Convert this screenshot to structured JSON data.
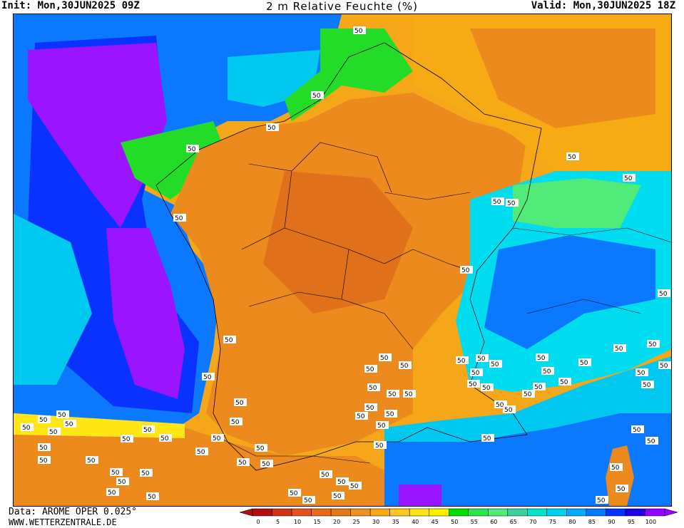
{
  "header": {
    "init": "Init: Mon,30JUN2025 09Z",
    "title": "2 m Relative Feuchte (%)",
    "valid": "Valid: Mon,30JUN2025 18Z"
  },
  "footer": {
    "data_source": "Data: AROME OPER 0.025°",
    "website": "WWW.WETTERZENTRALE.DE"
  },
  "legend": {
    "ticks": [
      "0",
      "5",
      "10",
      "15",
      "20",
      "25",
      "30",
      "35",
      "40",
      "45",
      "50",
      "55",
      "60",
      "65",
      "70",
      "75",
      "80",
      "85",
      "90",
      "95",
      "100"
    ],
    "colors": [
      "#b40a12",
      "#d23214",
      "#e6501e",
      "#ec6a14",
      "#e67814",
      "#f0901e",
      "#f5aa14",
      "#fac81e",
      "#ffe614",
      "#fff000",
      "#00dc00",
      "#28e650",
      "#50eb78",
      "#3cd2a0",
      "#00e6c8",
      "#00d2f0",
      "#00aaff",
      "#0078ff",
      "#0032ff",
      "#1e00e6",
      "#9600ff"
    ]
  },
  "map": {
    "contour_label": "50",
    "colors": {
      "dry_dark": "#e0701a",
      "dry": "#ec8a1e",
      "mid": "#f6aa14",
      "yellow": "#ffe614",
      "green": "#22dc28",
      "lightgreen": "#50eb78",
      "cyan": "#00dcf0",
      "blue": "#0a78ff",
      "darkblue": "#0a32ff",
      "purple": "#9a14ff"
    }
  }
}
